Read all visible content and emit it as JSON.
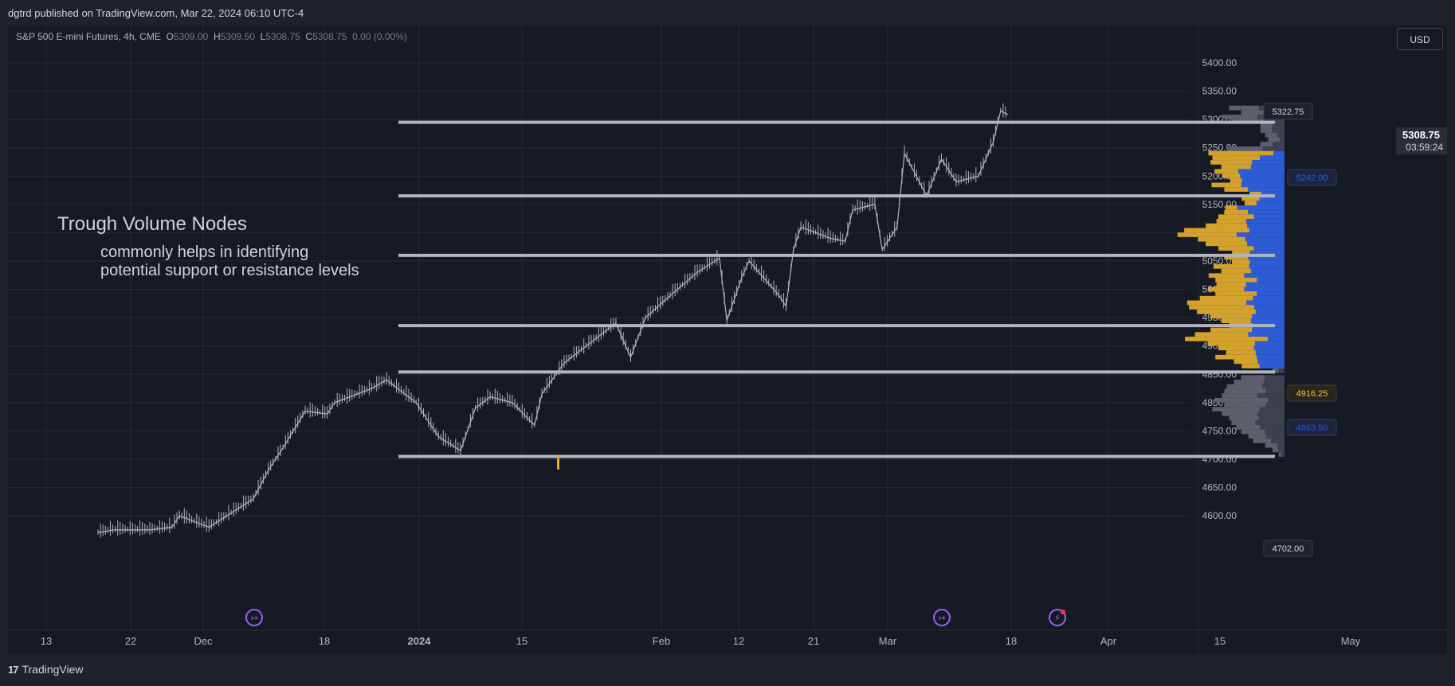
{
  "header": {
    "published": "dgtrd published on TradingView.com, Mar 22, 2024 06:10 UTC-4"
  },
  "legend": {
    "symbol": "S&P 500 E-mini Futures, 4h, CME",
    "o_label": "O",
    "o": "5309.00",
    "h_label": "H",
    "h": "5309.50",
    "l_label": "L",
    "l": "5308.75",
    "c_label": "C",
    "c": "5308.75",
    "change": "0.00 (0.00%)"
  },
  "currency_button": "USD",
  "footer": {
    "brand": "TradingView",
    "brand_mark": "17"
  },
  "annotation": {
    "title": "Trough Volume Nodes",
    "line1": "commonly helps in identifying",
    "line2": "potential support or resistance levels"
  },
  "price_labels": {
    "last": "5308.75",
    "countdown": "03:59:24",
    "top": "5322.75",
    "vah": "5242.00",
    "poc": "4916.25",
    "val": "4863.50",
    "bottom": "4702.00"
  },
  "colors": {
    "background": "#161a25",
    "up_volume": "#d4a12a",
    "down_volume": "#2e5bd6",
    "outside_va": "#5d606b",
    "level_line": "#b2b5be",
    "candle": "#b2b5be",
    "highlight_candle": "#f7a21b",
    "event_icon": "#9c5ff5"
  },
  "chart_data": {
    "type": "line",
    "title": "S&P 500 E-mini Futures, 4h, CME",
    "xlabel": "",
    "ylabel": "",
    "ylim": [
      4550,
      5450
    ],
    "y_ticks": [
      "5400.00",
      "5350.00",
      "5300.00",
      "5250.00",
      "5200.00",
      "5150.00",
      "5100.00",
      "5050.00",
      "5000.00",
      "4950.00",
      "4900.00",
      "4850.00",
      "4800.00",
      "4750.00",
      "4700.00",
      "4650.00",
      "4600.00"
    ],
    "x_ticks": [
      "13",
      "22",
      "Dec",
      "18",
      "2024",
      "15",
      "Feb",
      "12",
      "21",
      "Mar",
      "18",
      "Apr",
      "15",
      "May"
    ],
    "series": [
      {
        "values": [
          {
            "x": "2023-11-20",
            "y": 4570
          },
          {
            "x": "2023-11-22",
            "y": 4575
          },
          {
            "x": "2023-11-27",
            "y": 4575
          },
          {
            "x": "2023-11-30",
            "y": 4580
          },
          {
            "x": "2023-12-01",
            "y": 4600
          },
          {
            "x": "2023-12-05",
            "y": 4580
          },
          {
            "x": "2023-12-08",
            "y": 4605
          },
          {
            "x": "2023-12-11",
            "y": 4630
          },
          {
            "x": "2023-12-13",
            "y": 4680
          },
          {
            "x": "2023-12-15",
            "y": 4720
          },
          {
            "x": "2023-12-18",
            "y": 4785
          },
          {
            "x": "2023-12-21",
            "y": 4780
          },
          {
            "x": "2023-12-22",
            "y": 4800
          },
          {
            "x": "2023-12-27",
            "y": 4825
          },
          {
            "x": "2023-12-29",
            "y": 4840
          },
          {
            "x": "2024-01-02",
            "y": 4800
          },
          {
            "x": "2024-01-05",
            "y": 4740
          },
          {
            "x": "2024-01-08",
            "y": 4715
          },
          {
            "x": "2024-01-10",
            "y": 4790
          },
          {
            "x": "2024-01-12",
            "y": 4810
          },
          {
            "x": "2024-01-15",
            "y": 4800
          },
          {
            "x": "2024-01-18",
            "y": 4760
          },
          {
            "x": "2024-01-19",
            "y": 4815
          },
          {
            "x": "2024-01-22",
            "y": 4870
          },
          {
            "x": "2024-01-25",
            "y": 4900
          },
          {
            "x": "2024-01-29",
            "y": 4940
          },
          {
            "x": "2024-01-31",
            "y": 4880
          },
          {
            "x": "2024-02-02",
            "y": 4950
          },
          {
            "x": "2024-02-05",
            "y": 4985
          },
          {
            "x": "2024-02-09",
            "y": 5030
          },
          {
            "x": "2024-02-12",
            "y": 5055
          },
          {
            "x": "2024-02-13",
            "y": 4945
          },
          {
            "x": "2024-02-15",
            "y": 5020
          },
          {
            "x": "2024-02-16",
            "y": 5050
          },
          {
            "x": "2024-02-20",
            "y": 4990
          },
          {
            "x": "2024-02-21",
            "y": 4970
          },
          {
            "x": "2024-02-22",
            "y": 5070
          },
          {
            "x": "2024-02-23",
            "y": 5110
          },
          {
            "x": "2024-02-27",
            "y": 5090
          },
          {
            "x": "2024-02-29",
            "y": 5085
          },
          {
            "x": "2024-03-01",
            "y": 5140
          },
          {
            "x": "2024-03-04",
            "y": 5150
          },
          {
            "x": "2024-03-05",
            "y": 5070
          },
          {
            "x": "2024-03-07",
            "y": 5110
          },
          {
            "x": "2024-03-08",
            "y": 5240
          },
          {
            "x": "2024-03-11",
            "y": 5165
          },
          {
            "x": "2024-03-13",
            "y": 5230
          },
          {
            "x": "2024-03-15",
            "y": 5190
          },
          {
            "x": "2024-03-18",
            "y": 5200
          },
          {
            "x": "2024-03-19",
            "y": 5230
          },
          {
            "x": "2024-03-20",
            "y": 5260
          },
          {
            "x": "2024-03-21",
            "y": 5315
          },
          {
            "x": "2024-03-22",
            "y": 5308.75
          }
        ]
      }
    ],
    "levels": [
      5295,
      5165,
      5060,
      4936,
      4854,
      4705
    ],
    "volume_profile": {
      "price_low": 4702,
      "price_high": 5322.75,
      "value_area_high": 5242,
      "value_area_low": 4863.5,
      "poc": 4916.25,
      "rows": [
        {
          "price": 5320,
          "up": 0.25,
          "down": 0.45
        },
        {
          "price": 5312,
          "up": 0.2,
          "down": 0.35
        },
        {
          "price": 5304,
          "up": 0.3,
          "down": 0.5
        },
        {
          "price": 5296,
          "up": 0.25,
          "down": 0.4
        },
        {
          "price": 5288,
          "up": 0.1,
          "down": 0.2
        },
        {
          "price": 5280,
          "up": 0.1,
          "down": 0.2
        },
        {
          "price": 5272,
          "up": 0.1,
          "down": 0.15
        },
        {
          "price": 5264,
          "up": 0.1,
          "down": 0.12
        },
        {
          "price": 5256,
          "up": 0.1,
          "down": 0.2
        },
        {
          "price": 5248,
          "up": 0.3,
          "down": 0.45
        },
        {
          "price": 5240,
          "up": 0.55,
          "down": 0.45
        },
        {
          "price": 5232,
          "up": 0.4,
          "down": 0.5
        },
        {
          "price": 5224,
          "up": 0.35,
          "down": 0.55
        },
        {
          "price": 5216,
          "up": 0.25,
          "down": 0.5
        },
        {
          "price": 5208,
          "up": 0.2,
          "down": 0.6
        },
        {
          "price": 5200,
          "up": 0.15,
          "down": 0.55
        },
        {
          "price": 5192,
          "up": 0.1,
          "down": 0.5
        },
        {
          "price": 5184,
          "up": 0.25,
          "down": 0.6
        },
        {
          "price": 5176,
          "up": 0.2,
          "down": 0.5
        },
        {
          "price": 5168,
          "up": 0.1,
          "down": 0.3
        },
        {
          "price": 5160,
          "up": 0.15,
          "down": 0.35
        },
        {
          "price": 5152,
          "up": 0.1,
          "down": 0.35
        },
        {
          "price": 5144,
          "up": 0.1,
          "down": 0.55
        },
        {
          "price": 5136,
          "up": 0.2,
          "down": 0.5
        },
        {
          "price": 5128,
          "up": 0.3,
          "down": 0.5
        },
        {
          "price": 5120,
          "up": 0.25,
          "down": 0.55
        },
        {
          "price": 5112,
          "up": 0.35,
          "down": 0.6
        },
        {
          "price": 5104,
          "up": 0.55,
          "down": 0.7
        },
        {
          "price": 5096,
          "up": 0.5,
          "down": 0.8
        },
        {
          "price": 5088,
          "up": 0.4,
          "down": 0.65
        },
        {
          "price": 5080,
          "up": 0.35,
          "down": 0.6
        },
        {
          "price": 5072,
          "up": 0.3,
          "down": 0.5
        },
        {
          "price": 5064,
          "up": 0.15,
          "down": 0.45
        },
        {
          "price": 5056,
          "up": 0.2,
          "down": 0.5
        },
        {
          "price": 5048,
          "up": 0.15,
          "down": 0.45
        },
        {
          "price": 5040,
          "up": 0.3,
          "down": 0.55
        },
        {
          "price": 5032,
          "up": 0.25,
          "down": 0.5
        },
        {
          "price": 5024,
          "up": 0.3,
          "down": 0.6
        },
        {
          "price": 5016,
          "up": 0.35,
          "down": 0.5
        },
        {
          "price": 5008,
          "up": 0.25,
          "down": 0.55
        },
        {
          "price": 5000,
          "up": 0.3,
          "down": 0.6
        },
        {
          "price": 4992,
          "up": 0.35,
          "down": 0.5
        },
        {
          "price": 4984,
          "up": 0.45,
          "down": 0.6
        },
        {
          "price": 4976,
          "up": 0.5,
          "down": 0.7
        },
        {
          "price": 4968,
          "up": 0.55,
          "down": 0.65
        },
        {
          "price": 4960,
          "up": 0.5,
          "down": 0.6
        },
        {
          "price": 4952,
          "up": 0.35,
          "down": 0.55
        },
        {
          "price": 4944,
          "up": 0.25,
          "down": 0.5
        },
        {
          "price": 4936,
          "up": 0.2,
          "down": 0.45
        },
        {
          "price": 4928,
          "up": 0.35,
          "down": 0.55
        },
        {
          "price": 4920,
          "up": 0.45,
          "down": 0.65
        },
        {
          "price": 4912,
          "up": 0.7,
          "down": 0.6
        },
        {
          "price": 4904,
          "up": 0.4,
          "down": 0.55
        },
        {
          "price": 4896,
          "up": 0.3,
          "down": 0.5
        },
        {
          "price": 4888,
          "up": 0.25,
          "down": 0.45
        },
        {
          "price": 4880,
          "up": 0.35,
          "down": 0.5
        },
        {
          "price": 4872,
          "up": 0.2,
          "down": 0.4
        },
        {
          "price": 4864,
          "up": 0.15,
          "down": 0.35
        },
        {
          "price": 4856,
          "up": 0.05,
          "down": 0.1
        },
        {
          "price": 4844,
          "up": 0.2,
          "down": 0.35
        },
        {
          "price": 4836,
          "up": 0.25,
          "down": 0.4
        },
        {
          "price": 4828,
          "up": 0.3,
          "down": 0.45
        },
        {
          "price": 4820,
          "up": 0.35,
          "down": 0.45
        },
        {
          "price": 4812,
          "up": 0.3,
          "down": 0.5
        },
        {
          "price": 4804,
          "up": 0.45,
          "down": 0.5
        },
        {
          "price": 4796,
          "up": 0.35,
          "down": 0.45
        },
        {
          "price": 4788,
          "up": 0.4,
          "down": 0.55
        },
        {
          "price": 4780,
          "up": 0.3,
          "down": 0.5
        },
        {
          "price": 4772,
          "up": 0.25,
          "down": 0.45
        },
        {
          "price": 4764,
          "up": 0.2,
          "down": 0.45
        },
        {
          "price": 4756,
          "up": 0.2,
          "down": 0.4
        },
        {
          "price": 4748,
          "up": 0.2,
          "down": 0.35
        },
        {
          "price": 4740,
          "up": 0.15,
          "down": 0.3
        },
        {
          "price": 4732,
          "up": 0.15,
          "down": 0.25
        },
        {
          "price": 4724,
          "up": 0.1,
          "down": 0.15
        },
        {
          "price": 4716,
          "up": 0.05,
          "down": 0.1
        },
        {
          "price": 4708,
          "up": 0.02,
          "down": 0.05
        }
      ]
    }
  }
}
